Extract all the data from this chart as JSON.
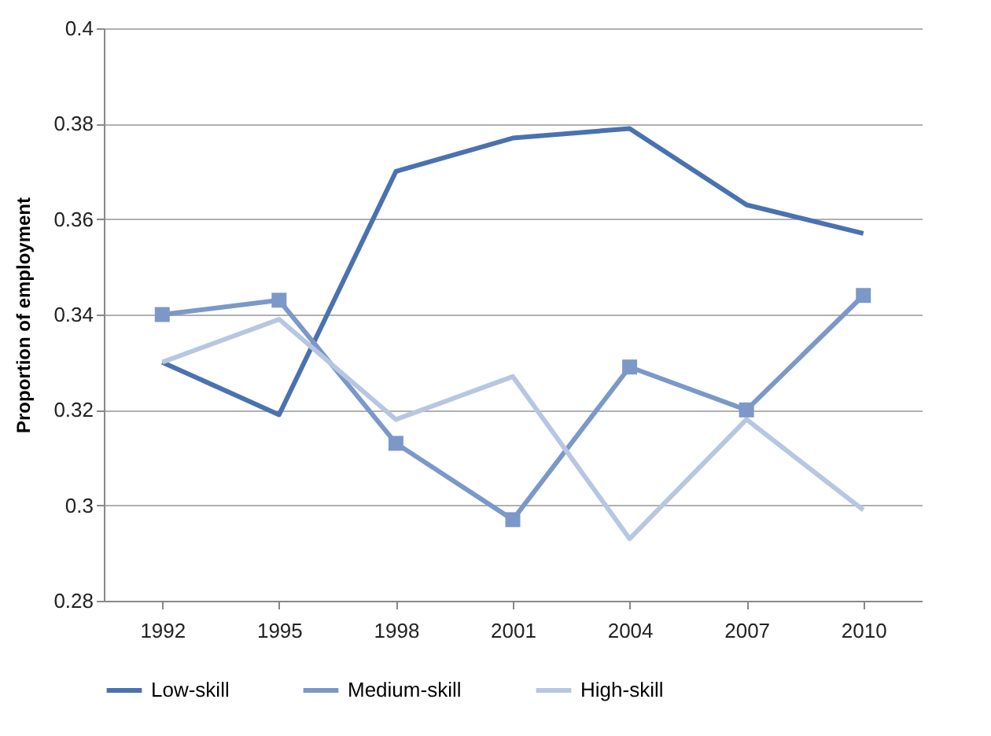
{
  "chart_data": {
    "type": "line",
    "ylabel": "Proportion of employment",
    "categories": [
      "1992",
      "1995",
      "1998",
      "2001",
      "2004",
      "2007",
      "2010"
    ],
    "series": [
      {
        "name": "Low-skill",
        "color": "#4a72b0",
        "marker": "none",
        "values": [
          0.33,
          0.319,
          0.37,
          0.377,
          0.379,
          0.363,
          0.357
        ]
      },
      {
        "name": "Medium-skill",
        "color": "#7b98c8",
        "marker": "square",
        "values": [
          0.34,
          0.343,
          0.313,
          0.297,
          0.329,
          0.32,
          0.344
        ]
      },
      {
        "name": "High-skill",
        "color": "#b7c7e1",
        "marker": "none",
        "values": [
          0.33,
          0.339,
          0.318,
          0.327,
          0.293,
          0.318,
          0.299
        ]
      }
    ],
    "ylim": [
      0.28,
      0.4
    ],
    "yticks": [
      0.28,
      0.3,
      0.32,
      0.34,
      0.36,
      0.38,
      0.4
    ],
    "grid": "y",
    "legend": "bottom",
    "line_style": "solid"
  }
}
